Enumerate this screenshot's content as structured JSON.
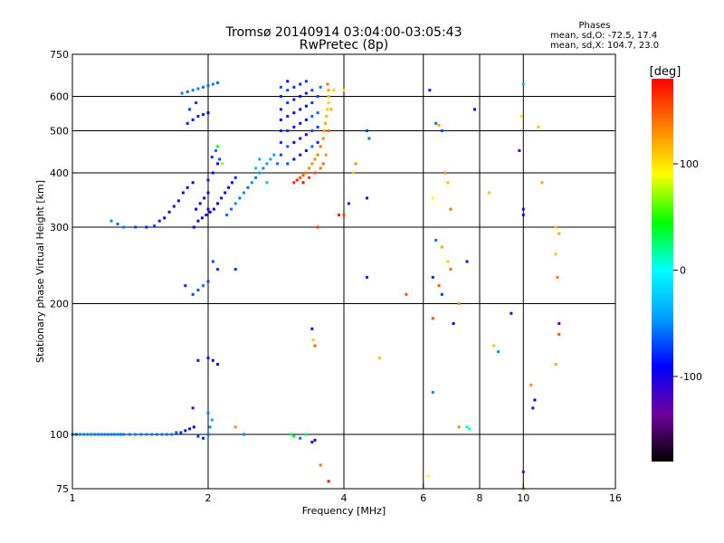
{
  "chart_data": {
    "type": "scatter",
    "title": "Tromsø 20140914 03:04:00-03:05:43",
    "subtitle": "RwPretec (8p)",
    "xlabel": "Frequency [MHz]",
    "ylabel": "Stationary phase Virtual Height [km]",
    "xscale": "log",
    "yscale": "log",
    "xlim": [
      1,
      16
    ],
    "ylim": [
      75,
      750
    ],
    "xticks": [
      {
        "value": 1,
        "label": "1"
      },
      {
        "value": 2,
        "label": "2"
      },
      {
        "value": 4,
        "label": "4"
      },
      {
        "value": 6,
        "label": "6"
      },
      {
        "value": 8,
        "label": "8"
      },
      {
        "value": 10,
        "label": "10"
      },
      {
        "value": 16,
        "label": "16"
      }
    ],
    "xgrid": [
      2,
      4,
      6,
      8,
      10
    ],
    "yticks": [
      {
        "value": 750,
        "label": "750"
      },
      {
        "value": 600,
        "label": "600"
      },
      {
        "value": 500,
        "label": "500"
      },
      {
        "value": 400,
        "label": "400"
      },
      {
        "value": 300,
        "label": "300"
      },
      {
        "value": 200,
        "label": "200"
      },
      {
        "value": 100,
        "label": "100"
      },
      {
        "value": 75,
        "label": "75"
      }
    ],
    "ygrid": [
      600,
      500,
      400,
      300,
      200,
      100
    ],
    "grid": true,
    "stats": {
      "heading": "Phases",
      "line1": "mean, sd,O: -72.5, 17.4",
      "line2": "mean, sd,X: 104.7, 23.0"
    },
    "colorbar": {
      "label": "[deg]",
      "range": [
        -180,
        180
      ],
      "ticks": [
        {
          "value": 100,
          "label": "100"
        },
        {
          "value": 0,
          "label": "0"
        },
        {
          "value": -100,
          "label": "-100"
        }
      ],
      "stops": [
        "#000000",
        "#7000a0",
        "#0000ff",
        "#00a0ff",
        "#00ffff",
        "#00ff00",
        "#ffff00",
        "#ff8000",
        "#ff0000"
      ]
    },
    "points": [
      [
        1.0,
        100,
        -55
      ],
      [
        1.02,
        100,
        -55
      ],
      [
        1.04,
        100,
        -55
      ],
      [
        1.06,
        100,
        -55
      ],
      [
        1.08,
        100,
        -55
      ],
      [
        1.1,
        100,
        -55
      ],
      [
        1.12,
        100,
        -55
      ],
      [
        1.14,
        100,
        -55
      ],
      [
        1.16,
        100,
        -55
      ],
      [
        1.18,
        100,
        -55
      ],
      [
        1.2,
        100,
        -55
      ],
      [
        1.22,
        100,
        -55
      ],
      [
        1.24,
        100,
        -55
      ],
      [
        1.26,
        100,
        -55
      ],
      [
        1.28,
        100,
        -55
      ],
      [
        1.3,
        100,
        -55
      ],
      [
        1.34,
        100,
        -55
      ],
      [
        1.38,
        100,
        -55
      ],
      [
        1.42,
        100,
        -55
      ],
      [
        1.46,
        100,
        -55
      ],
      [
        1.5,
        100,
        -55
      ],
      [
        1.54,
        100,
        -55
      ],
      [
        1.58,
        100,
        -55
      ],
      [
        1.62,
        100,
        -55
      ],
      [
        1.66,
        100,
        -55
      ],
      [
        1.7,
        101,
        -65
      ],
      [
        1.74,
        101,
        -75
      ],
      [
        1.78,
        102,
        -85
      ],
      [
        1.82,
        103,
        -95
      ],
      [
        1.86,
        104,
        -95
      ],
      [
        1.9,
        99,
        -70
      ],
      [
        1.95,
        98,
        -80
      ],
      [
        2.0,
        100,
        -60
      ],
      [
        2.02,
        104,
        -45
      ],
      [
        2.04,
        108,
        -40
      ],
      [
        2.0,
        112,
        -50
      ],
      [
        2.3,
        104,
        130
      ],
      [
        2.4,
        100,
        -50
      ],
      [
        3.05,
        100,
        30
      ],
      [
        3.1,
        99,
        40
      ],
      [
        3.2,
        98,
        -60
      ],
      [
        3.3,
        100,
        20
      ],
      [
        3.4,
        96,
        -110
      ],
      [
        3.45,
        97,
        -95
      ],
      [
        3.55,
        85,
        140
      ],
      [
        3.7,
        78,
        175
      ],
      [
        6.15,
        80,
        90
      ],
      [
        7.2,
        104,
        130
      ],
      [
        7.5,
        104,
        15
      ],
      [
        7.6,
        103,
        0
      ],
      [
        10.0,
        82,
        -125
      ],
      [
        10.0,
        75,
        130
      ],
      [
        1.22,
        310,
        -50
      ],
      [
        1.26,
        305,
        -60
      ],
      [
        1.3,
        300,
        -55
      ],
      [
        1.38,
        300,
        -70
      ],
      [
        1.46,
        300,
        -80
      ],
      [
        1.52,
        302,
        -75
      ],
      [
        1.56,
        310,
        -80
      ],
      [
        1.6,
        315,
        -90
      ],
      [
        1.64,
        325,
        -95
      ],
      [
        1.68,
        335,
        -100
      ],
      [
        1.72,
        345,
        -100
      ],
      [
        1.76,
        360,
        -95
      ],
      [
        1.8,
        370,
        -95
      ],
      [
        1.85,
        380,
        -100
      ],
      [
        1.88,
        330,
        -90
      ],
      [
        1.92,
        340,
        -95
      ],
      [
        1.96,
        350,
        -90
      ],
      [
        2.0,
        330,
        -100
      ],
      [
        2.0,
        360,
        -95
      ],
      [
        2.0,
        385,
        -80
      ],
      [
        2.05,
        400,
        -85
      ],
      [
        2.1,
        420,
        -90
      ],
      [
        2.04,
        435,
        -75
      ],
      [
        2.08,
        450,
        -60
      ],
      [
        2.12,
        430,
        -70
      ],
      [
        2.1,
        460,
        40
      ],
      [
        2.15,
        420,
        70
      ],
      [
        1.86,
        300,
        -95
      ],
      [
        1.9,
        310,
        -100
      ],
      [
        1.94,
        315,
        -105
      ],
      [
        1.98,
        320,
        -100
      ],
      [
        2.02,
        325,
        -95
      ],
      [
        2.06,
        330,
        -100
      ],
      [
        2.1,
        340,
        -90
      ],
      [
        2.14,
        350,
        -95
      ],
      [
        2.18,
        360,
        -90
      ],
      [
        2.22,
        370,
        -95
      ],
      [
        2.26,
        380,
        -85
      ],
      [
        2.3,
        390,
        -80
      ],
      [
        2.2,
        320,
        -60
      ],
      [
        2.25,
        330,
        -55
      ],
      [
        2.3,
        340,
        -50
      ],
      [
        2.35,
        350,
        -55
      ],
      [
        2.4,
        360,
        -50
      ],
      [
        2.45,
        370,
        -60
      ],
      [
        2.5,
        380,
        -50
      ],
      [
        2.55,
        390,
        -55
      ],
      [
        2.6,
        400,
        -45
      ],
      [
        2.65,
        410,
        -50
      ],
      [
        2.7,
        420,
        -45
      ],
      [
        2.75,
        430,
        -40
      ],
      [
        2.8,
        440,
        -45
      ],
      [
        2.6,
        430,
        -40
      ],
      [
        2.55,
        410,
        -30
      ],
      [
        2.7,
        380,
        -30
      ],
      [
        1.8,
        520,
        -80
      ],
      [
        1.85,
        530,
        -85
      ],
      [
        1.9,
        540,
        -80
      ],
      [
        1.95,
        545,
        -85
      ],
      [
        2.0,
        550,
        -90
      ],
      [
        1.82,
        560,
        -70
      ],
      [
        1.88,
        580,
        -75
      ],
      [
        1.75,
        610,
        -55
      ],
      [
        1.8,
        615,
        -60
      ],
      [
        1.85,
        620,
        -55
      ],
      [
        1.9,
        625,
        -55
      ],
      [
        1.95,
        630,
        -60
      ],
      [
        2.0,
        635,
        -60
      ],
      [
        2.05,
        640,
        -55
      ],
      [
        2.1,
        645,
        -60
      ],
      [
        1.78,
        220,
        -80
      ],
      [
        1.85,
        210,
        -70
      ],
      [
        1.9,
        215,
        -65
      ],
      [
        1.95,
        220,
        -60
      ],
      [
        2.0,
        225,
        -70
      ],
      [
        2.05,
        250,
        -70
      ],
      [
        2.1,
        240,
        -75
      ],
      [
        2.3,
        240,
        -75
      ],
      [
        2.0,
        150,
        -110
      ],
      [
        2.05,
        148,
        -105
      ],
      [
        2.1,
        145,
        -90
      ],
      [
        1.9,
        148,
        -110
      ],
      [
        1.85,
        115,
        -120
      ],
      [
        2.85,
        420,
        -60
      ],
      [
        2.9,
        440,
        -70
      ],
      [
        2.9,
        470,
        -75
      ],
      [
        2.9,
        500,
        -80
      ],
      [
        2.9,
        530,
        -90
      ],
      [
        2.9,
        560,
        -85
      ],
      [
        2.9,
        600,
        -80
      ],
      [
        2.9,
        630,
        -70
      ],
      [
        3.0,
        420,
        -70
      ],
      [
        3.0,
        460,
        -65
      ],
      [
        3.0,
        500,
        -75
      ],
      [
        3.0,
        540,
        -80
      ],
      [
        3.0,
        580,
        -75
      ],
      [
        3.0,
        620,
        -70
      ],
      [
        3.0,
        650,
        -90
      ],
      [
        3.1,
        430,
        -90
      ],
      [
        3.1,
        470,
        -95
      ],
      [
        3.1,
        510,
        -100
      ],
      [
        3.1,
        550,
        -90
      ],
      [
        3.1,
        590,
        -85
      ],
      [
        3.1,
        630,
        -75
      ],
      [
        3.2,
        440,
        -100
      ],
      [
        3.2,
        480,
        -95
      ],
      [
        3.2,
        520,
        -105
      ],
      [
        3.2,
        560,
        -100
      ],
      [
        3.2,
        600,
        -90
      ],
      [
        3.2,
        640,
        -80
      ],
      [
        3.3,
        450,
        -85
      ],
      [
        3.3,
        490,
        -100
      ],
      [
        3.3,
        530,
        -95
      ],
      [
        3.3,
        570,
        -90
      ],
      [
        3.3,
        610,
        -85
      ],
      [
        3.3,
        650,
        -75
      ],
      [
        3.4,
        460,
        -60
      ],
      [
        3.4,
        500,
        -70
      ],
      [
        3.4,
        540,
        -60
      ],
      [
        3.4,
        580,
        -75
      ],
      [
        3.4,
        620,
        -70
      ],
      [
        3.5,
        470,
        -80
      ],
      [
        3.5,
        510,
        -75
      ],
      [
        3.5,
        550,
        -60
      ],
      [
        3.5,
        600,
        -70
      ],
      [
        3.55,
        630,
        -55
      ],
      [
        3.1,
        380,
        170
      ],
      [
        3.15,
        385,
        165
      ],
      [
        3.2,
        390,
        150
      ],
      [
        3.25,
        395,
        145
      ],
      [
        3.3,
        400,
        140
      ],
      [
        3.35,
        410,
        135
      ],
      [
        3.4,
        420,
        130
      ],
      [
        3.45,
        430,
        130
      ],
      [
        3.5,
        440,
        135
      ],
      [
        3.55,
        460,
        140
      ],
      [
        3.6,
        480,
        130
      ],
      [
        3.62,
        500,
        125
      ],
      [
        3.64,
        520,
        120
      ],
      [
        3.66,
        540,
        115
      ],
      [
        3.68,
        560,
        110
      ],
      [
        3.7,
        580,
        105
      ],
      [
        3.7,
        600,
        115
      ],
      [
        3.7,
        620,
        125
      ],
      [
        3.68,
        640,
        140
      ],
      [
        3.25,
        380,
        175
      ],
      [
        3.35,
        390,
        160
      ],
      [
        3.45,
        400,
        150
      ],
      [
        3.55,
        410,
        140
      ],
      [
        3.6,
        420,
        145
      ],
      [
        3.65,
        440,
        130
      ],
      [
        3.7,
        500,
        140
      ],
      [
        3.75,
        560,
        120
      ],
      [
        3.8,
        620,
        110
      ],
      [
        4.0,
        320,
        155
      ],
      [
        4.2,
        400,
        110
      ],
      [
        4.25,
        420,
        130
      ],
      [
        4.5,
        500,
        -70
      ],
      [
        4.55,
        480,
        -60
      ],
      [
        4.5,
        350,
        -110
      ],
      [
        4.1,
        340,
        -80
      ],
      [
        4.0,
        620,
        100
      ],
      [
        3.9,
        320,
        170
      ],
      [
        3.5,
        300,
        160
      ],
      [
        3.4,
        175,
        -105
      ],
      [
        3.42,
        165,
        110
      ],
      [
        3.45,
        160,
        150
      ],
      [
        4.5,
        230,
        -80
      ],
      [
        4.8,
        150,
        110
      ],
      [
        5.5,
        210,
        150
      ],
      [
        6.2,
        620,
        -105
      ],
      [
        6.4,
        520,
        -60
      ],
      [
        6.5,
        515,
        120
      ],
      [
        6.6,
        500,
        -70
      ],
      [
        6.7,
        400,
        130
      ],
      [
        6.8,
        380,
        110
      ],
      [
        6.9,
        330,
        140
      ],
      [
        6.3,
        350,
        90
      ],
      [
        6.4,
        280,
        -60
      ],
      [
        6.6,
        270,
        120
      ],
      [
        6.8,
        250,
        110
      ],
      [
        6.9,
        240,
        140
      ],
      [
        6.3,
        230,
        -80
      ],
      [
        6.5,
        220,
        150
      ],
      [
        6.6,
        210,
        -70
      ],
      [
        6.3,
        185,
        150
      ],
      [
        7.0,
        180,
        -90
      ],
      [
        7.2,
        200,
        130
      ],
      [
        6.3,
        125,
        -50
      ],
      [
        7.5,
        250,
        -110
      ],
      [
        7.8,
        560,
        -90
      ],
      [
        8.4,
        360,
        110
      ],
      [
        8.6,
        160,
        110
      ],
      [
        8.8,
        155,
        -50
      ],
      [
        9.4,
        190,
        -100
      ],
      [
        9.8,
        450,
        -120
      ],
      [
        9.9,
        540,
        100
      ],
      [
        10.0,
        640,
        -40
      ],
      [
        10.0,
        320,
        -110
      ],
      [
        10.0,
        330,
        -100
      ],
      [
        10.4,
        130,
        130
      ],
      [
        10.6,
        120,
        -90
      ],
      [
        10.5,
        115,
        -100
      ],
      [
        10.8,
        510,
        110
      ],
      [
        11.0,
        380,
        120
      ],
      [
        11.8,
        300,
        110
      ],
      [
        12.0,
        290,
        120
      ],
      [
        11.8,
        260,
        110
      ],
      [
        11.9,
        230,
        140
      ],
      [
        12.0,
        180,
        -130
      ],
      [
        12.0,
        170,
        150
      ],
      [
        11.8,
        145,
        120
      ]
    ]
  }
}
